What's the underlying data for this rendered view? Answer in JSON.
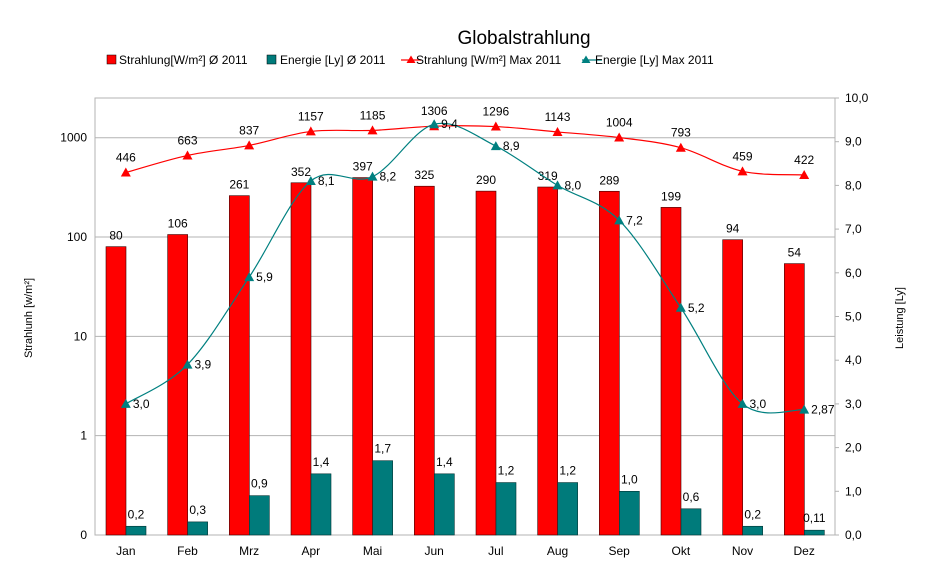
{
  "chart_data": {
    "type": "bar",
    "title": "Globalstrahlung",
    "categories": [
      "Jan",
      "Feb",
      "Mrz",
      "Apr",
      "Mai",
      "Jun",
      "Jul",
      "Aug",
      "Sep",
      "Okt",
      "Nov",
      "Dez"
    ],
    "ylabel_left": "Strahlunh [w/m²]",
    "ylabel_right": "Leistung [Ly]",
    "y_left_scale": "log",
    "y_left_ticks": [
      "0",
      "1",
      "10",
      "100",
      "1000"
    ],
    "y_right_ticks": [
      "0,0",
      "1,0",
      "2,0",
      "3,0",
      "4,0",
      "5,0",
      "6,0",
      "7,0",
      "8,0",
      "9,0",
      "10,0"
    ],
    "y_right_lim": [
      0,
      10
    ],
    "grid": true,
    "legend_position": "top",
    "series": [
      {
        "name": "Strahlung[W/m²] Ø 2011",
        "type": "bar",
        "axis": "left",
        "color": "#ff0000",
        "values": [
          80,
          106,
          261,
          352,
          397,
          325,
          290,
          319,
          289,
          199,
          94,
          54
        ],
        "labels": [
          "80",
          "106",
          "261",
          "352",
          "397",
          "325",
          "290",
          "319",
          "289",
          "199",
          "94",
          "54"
        ]
      },
      {
        "name": "Energie [Ly] Ø 2011",
        "type": "bar",
        "axis": "right",
        "color": "#007b7b",
        "values": [
          0.2,
          0.3,
          0.9,
          1.4,
          1.7,
          1.4,
          1.2,
          1.2,
          1.0,
          0.6,
          0.2,
          0.11
        ],
        "labels": [
          "0,2",
          "0,3",
          "0,9",
          "1,4",
          "1,7",
          "1,4",
          "1,2",
          "1,2",
          "1,0",
          "0,6",
          "0,2",
          "0,11"
        ]
      },
      {
        "name": "Strahlung [W/m²] Max 2011",
        "type": "line",
        "axis": "left",
        "color": "#ff0000",
        "marker": "triangle",
        "values": [
          446,
          663,
          837,
          1157,
          1185,
          1306,
          1296,
          1143,
          1004,
          793,
          459,
          422
        ],
        "labels": [
          "446",
          "663",
          "837",
          "1157",
          "1185",
          "1306",
          "1296",
          "1143",
          "1004",
          "793",
          "459",
          "422"
        ]
      },
      {
        "name": "Energie [Ly] Max 2011",
        "type": "line",
        "axis": "right",
        "color": "#008080",
        "marker": "triangle",
        "values": [
          3.0,
          3.9,
          5.9,
          8.1,
          8.2,
          9.4,
          8.9,
          8.0,
          7.2,
          5.2,
          3.0,
          2.87
        ],
        "labels": [
          "3,0",
          "3,9",
          "5,9",
          "8,1",
          "8,2",
          "9,4",
          "8,9",
          "8,0",
          "7,2",
          "5,2",
          "3,0",
          "2,87"
        ]
      }
    ]
  }
}
